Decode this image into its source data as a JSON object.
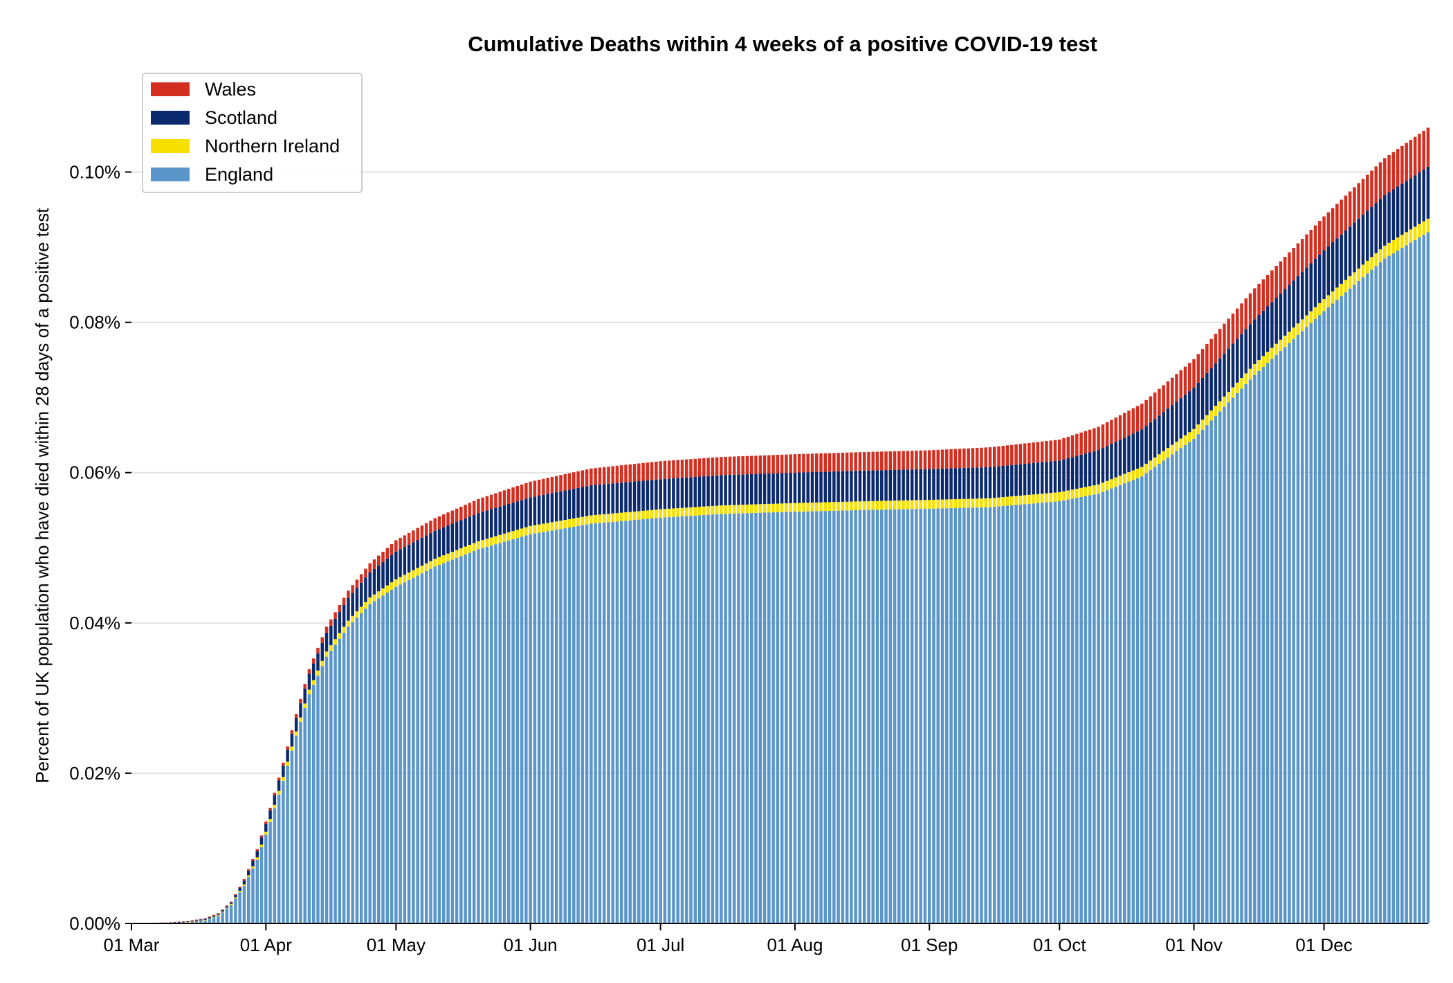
{
  "chart_data": {
    "type": "bar",
    "stacked": true,
    "title": "Cumulative Deaths within 4 weeks of a positive COVID-19 test",
    "ylabel": "Percent of UK population who have died within 28 days of a positive test",
    "xlabel": "",
    "x_range": [
      "2020-03-01",
      "2020-12-25"
    ],
    "ylim": [
      0,
      0.11
    ],
    "y_ticks": [
      "0.00%",
      "0.02%",
      "0.04%",
      "0.06%",
      "0.08%",
      "0.10%"
    ],
    "y_tick_values": [
      0,
      0.02,
      0.04,
      0.06,
      0.08,
      0.1
    ],
    "x_ticks": [
      "01 Mar",
      "01 Apr",
      "01 May",
      "01 Jun",
      "01 Jul",
      "01 Aug",
      "01 Sep",
      "01 Oct",
      "01 Nov",
      "01 Dec"
    ],
    "x_tick_dates": [
      "2020-03-01",
      "2020-04-01",
      "2020-05-01",
      "2020-06-01",
      "2020-07-01",
      "2020-08-01",
      "2020-09-01",
      "2020-10-01",
      "2020-11-01",
      "2020-12-01"
    ],
    "grid": "horizontal",
    "legend": "top-left",
    "series": [
      {
        "name": "England",
        "color": "#5b96cb",
        "points": [
          [
            "2020-03-01",
            0
          ],
          [
            "2020-03-10",
            0
          ],
          [
            "2020-03-14",
            0.0001
          ],
          [
            "2020-03-18",
            0.0004
          ],
          [
            "2020-03-21",
            0.001
          ],
          [
            "2020-03-24",
            0.0025
          ],
          [
            "2020-03-27",
            0.005
          ],
          [
            "2020-03-30",
            0.0085
          ],
          [
            "2020-04-02",
            0.0135
          ],
          [
            "2020-04-05",
            0.019
          ],
          [
            "2020-04-08",
            0.025
          ],
          [
            "2020-04-11",
            0.0305
          ],
          [
            "2020-04-15",
            0.0355
          ],
          [
            "2020-04-20",
            0.0395
          ],
          [
            "2020-04-25",
            0.0425
          ],
          [
            "2020-05-01",
            0.0448
          ],
          [
            "2020-05-10",
            0.0475
          ],
          [
            "2020-05-20",
            0.0498
          ],
          [
            "2020-06-01",
            0.0518
          ],
          [
            "2020-06-15",
            0.0532
          ],
          [
            "2020-07-01",
            0.054
          ],
          [
            "2020-07-15",
            0.0545
          ],
          [
            "2020-08-01",
            0.0548
          ],
          [
            "2020-08-15",
            0.055
          ],
          [
            "2020-09-01",
            0.0552
          ],
          [
            "2020-09-15",
            0.0554
          ],
          [
            "2020-10-01",
            0.0562
          ],
          [
            "2020-10-10",
            0.0572
          ],
          [
            "2020-10-20",
            0.0595
          ],
          [
            "2020-11-01",
            0.0645
          ],
          [
            "2020-11-15",
            0.073
          ],
          [
            "2020-12-01",
            0.0815
          ],
          [
            "2020-12-15",
            0.0885
          ],
          [
            "2020-12-25",
            0.092
          ]
        ]
      },
      {
        "name": "Northern Ireland",
        "color": "#f7e000",
        "points": [
          [
            "2020-03-01",
            0
          ],
          [
            "2020-03-24",
            0.0001
          ],
          [
            "2020-04-05",
            0.0005
          ],
          [
            "2020-04-20",
            0.0008
          ],
          [
            "2020-05-01",
            0.001
          ],
          [
            "2020-06-01",
            0.0011
          ],
          [
            "2020-10-01",
            0.0012
          ],
          [
            "2020-11-01",
            0.0013
          ],
          [
            "2020-12-01",
            0.0016
          ],
          [
            "2020-12-25",
            0.0018
          ]
        ]
      },
      {
        "name": "Scotland",
        "color": "#0b2a6e",
        "points": [
          [
            "2020-03-01",
            0
          ],
          [
            "2020-03-24",
            0.0002
          ],
          [
            "2020-04-05",
            0.0015
          ],
          [
            "2020-04-20",
            0.003
          ],
          [
            "2020-05-01",
            0.0037
          ],
          [
            "2020-06-01",
            0.0038
          ],
          [
            "2020-06-15",
            0.004
          ],
          [
            "2020-07-01",
            0.004
          ],
          [
            "2020-09-01",
            0.0041
          ],
          [
            "2020-10-01",
            0.0042
          ],
          [
            "2020-11-01",
            0.0055
          ],
          [
            "2020-12-01",
            0.0065
          ],
          [
            "2020-12-25",
            0.0069
          ]
        ]
      },
      {
        "name": "Wales",
        "color": "#d22f20",
        "points": [
          [
            "2020-03-01",
            0
          ],
          [
            "2020-03-24",
            0.0001
          ],
          [
            "2020-04-05",
            0.0004
          ],
          [
            "2020-04-20",
            0.001
          ],
          [
            "2020-05-01",
            0.0015
          ],
          [
            "2020-06-01",
            0.0021
          ],
          [
            "2020-07-01",
            0.0024
          ],
          [
            "2020-09-01",
            0.0025
          ],
          [
            "2020-10-01",
            0.0028
          ],
          [
            "2020-11-01",
            0.0038
          ],
          [
            "2020-12-01",
            0.0045
          ],
          [
            "2020-12-25",
            0.0052
          ]
        ]
      }
    ],
    "legend_order": [
      "Wales",
      "Scotland",
      "Northern Ireland",
      "England"
    ]
  }
}
